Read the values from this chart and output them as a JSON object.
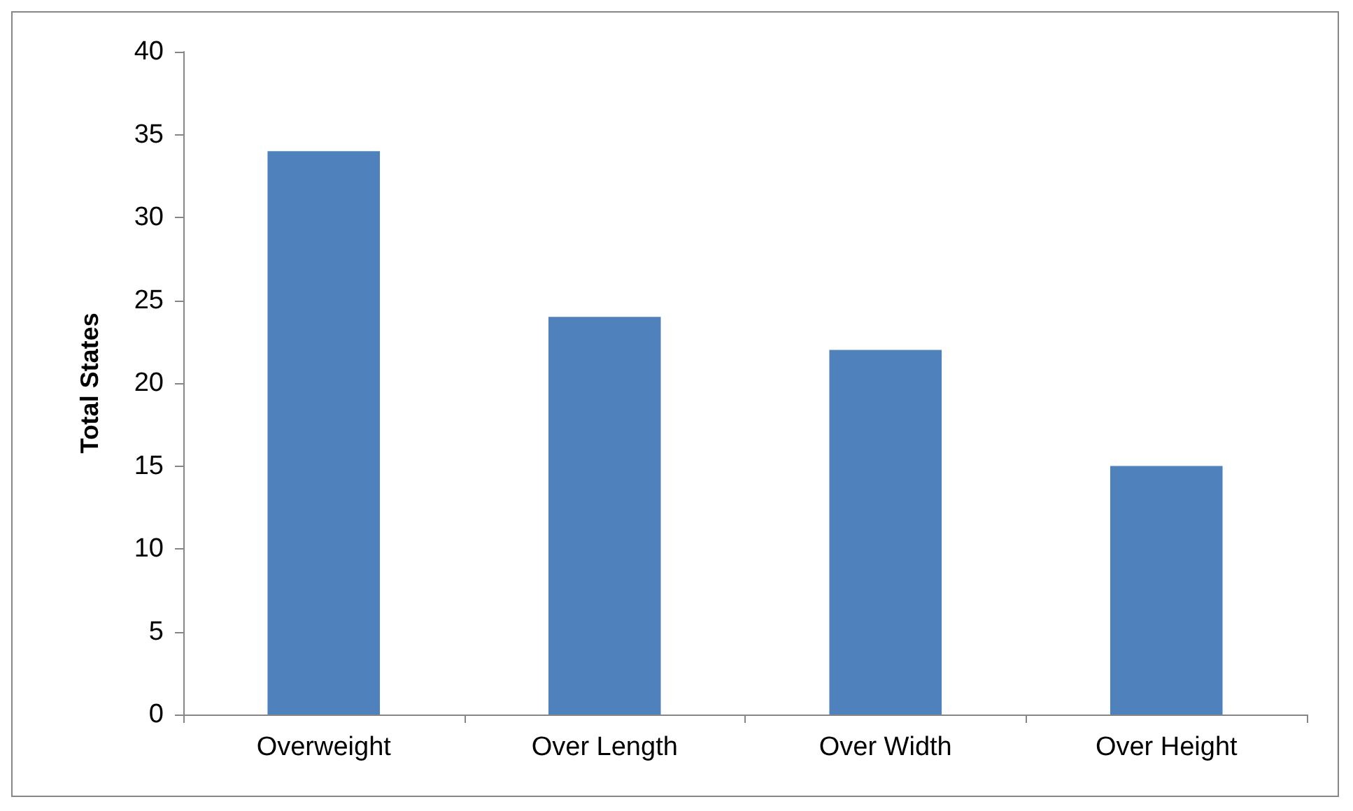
{
  "chart_data": {
    "type": "bar",
    "ylabel": "Total States",
    "categories": [
      "Overweight",
      "Over Length",
      "Over Width",
      "Over Height"
    ],
    "values": [
      34,
      24,
      22,
      15
    ],
    "color": "#4f81bd",
    "ylim": [
      0,
      40
    ],
    "yticks": [
      0,
      5,
      10,
      15,
      20,
      25,
      30,
      35,
      40
    ],
    "grid": false
  }
}
